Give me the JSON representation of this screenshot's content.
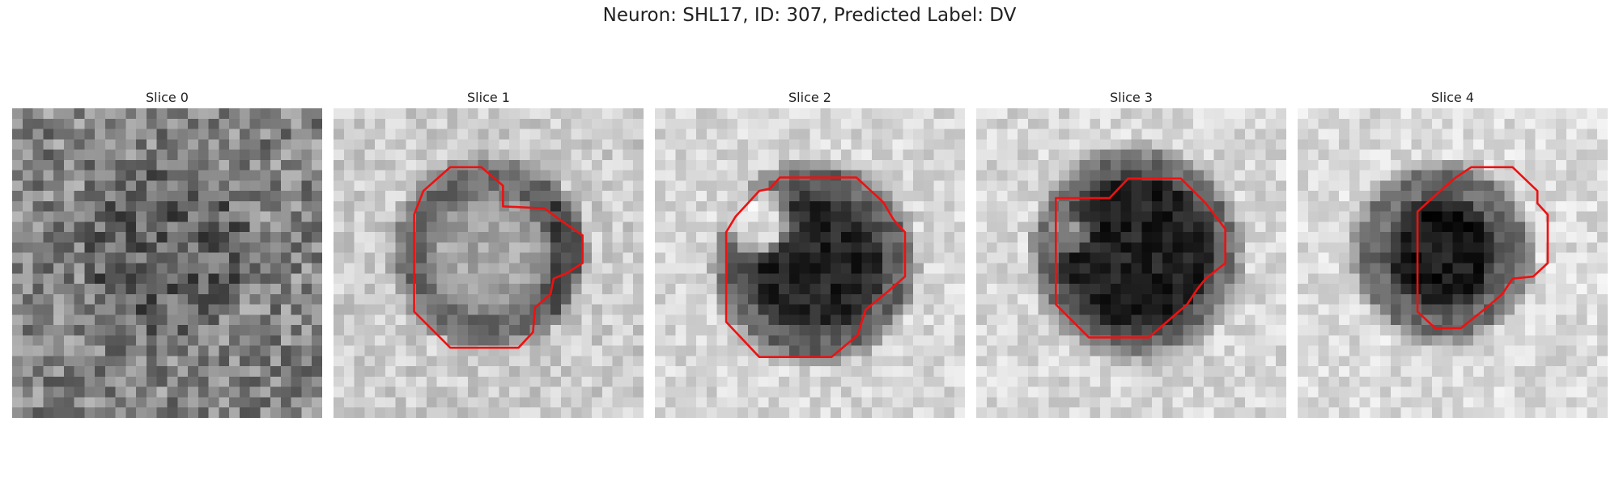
{
  "title": "Neuron: SHL17, ID: 307, Predicted Label: DV",
  "panels": [
    {
      "label": "Slice 0"
    },
    {
      "label": "Slice 1"
    },
    {
      "label": "Slice 2"
    },
    {
      "label": "Slice 3"
    },
    {
      "label": "Slice 4"
    }
  ]
}
